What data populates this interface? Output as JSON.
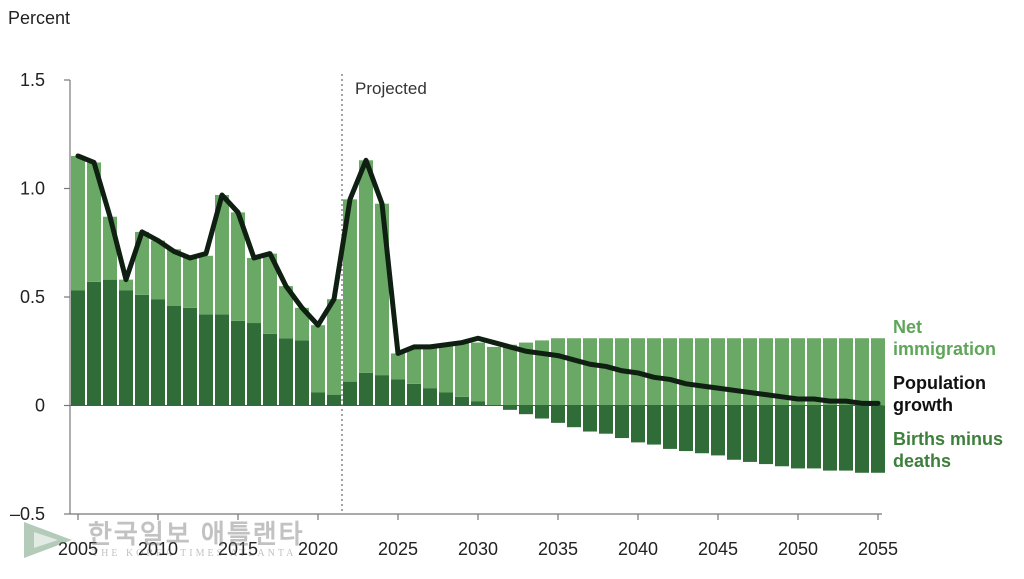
{
  "unit_label": "Percent",
  "colors": {
    "net_immigration": "#6aa865",
    "births_minus_deaths": "#2f6c37",
    "population_growth": "#0f1f12",
    "axis": "#777777",
    "legend_immigration": "#5fa55a",
    "legend_births": "#3e7f3c",
    "legend_growth": "#111111"
  },
  "chart_data": {
    "type": "bar",
    "stacked": true,
    "title": "",
    "xlabel": "",
    "ylabel": "Percent",
    "ylim": [
      -0.5,
      1.5
    ],
    "yticks": [
      {
        "value": 1.5,
        "label": "1.5"
      },
      {
        "value": 1.0,
        "label": "1.0"
      },
      {
        "value": 0.5,
        "label": "0.5"
      },
      {
        "value": 0,
        "label": "0"
      },
      {
        "value": -0.5,
        "label": "–0.5"
      }
    ],
    "xticks": [
      {
        "year": 2005,
        "label": "2005"
      },
      {
        "year": 2010,
        "label": "2010"
      },
      {
        "year": 2015,
        "label": "2015"
      },
      {
        "year": 2020,
        "label": "2020"
      },
      {
        "year": 2025,
        "label": "2025"
      },
      {
        "year": 2030,
        "label": "2030"
      },
      {
        "year": 2035,
        "label": "2035"
      },
      {
        "year": 2040,
        "label": "2040"
      },
      {
        "year": 2045,
        "label": "2045"
      },
      {
        "year": 2050,
        "label": "2050"
      },
      {
        "year": 2055,
        "label": "2055"
      }
    ],
    "projected_start": 2021.5,
    "projected_label": "Projected",
    "years": [
      2005,
      2006,
      2007,
      2008,
      2009,
      2010,
      2011,
      2012,
      2013,
      2014,
      2015,
      2016,
      2017,
      2018,
      2019,
      2020,
      2021,
      2022,
      2023,
      2024,
      2025,
      2026,
      2027,
      2028,
      2029,
      2030,
      2031,
      2032,
      2033,
      2034,
      2035,
      2036,
      2037,
      2038,
      2039,
      2040,
      2041,
      2042,
      2043,
      2044,
      2045,
      2046,
      2047,
      2048,
      2049,
      2050,
      2051,
      2052,
      2053,
      2054,
      2055
    ],
    "series": [
      {
        "name": "Births minus deaths",
        "values": [
          0.53,
          0.57,
          0.58,
          0.53,
          0.51,
          0.49,
          0.46,
          0.45,
          0.42,
          0.42,
          0.39,
          0.38,
          0.33,
          0.31,
          0.3,
          0.06,
          0.05,
          0.11,
          0.15,
          0.14,
          0.12,
          0.1,
          0.08,
          0.06,
          0.04,
          0.02,
          0.0,
          -0.02,
          -0.04,
          -0.06,
          -0.08,
          -0.1,
          -0.12,
          -0.13,
          -0.15,
          -0.17,
          -0.18,
          -0.2,
          -0.21,
          -0.22,
          -0.23,
          -0.25,
          -0.26,
          -0.27,
          -0.28,
          -0.29,
          -0.29,
          -0.3,
          -0.3,
          -0.31,
          -0.31
        ]
      },
      {
        "name": "Net immigration",
        "values": [
          0.62,
          0.55,
          0.29,
          0.05,
          0.29,
          0.27,
          0.26,
          0.23,
          0.27,
          0.55,
          0.5,
          0.3,
          0.37,
          0.24,
          0.15,
          0.31,
          0.44,
          0.84,
          0.98,
          0.79,
          0.12,
          0.17,
          0.19,
          0.22,
          0.25,
          0.27,
          0.27,
          0.28,
          0.29,
          0.3,
          0.31,
          0.31,
          0.31,
          0.31,
          0.31,
          0.31,
          0.31,
          0.31,
          0.31,
          0.31,
          0.31,
          0.31,
          0.31,
          0.31,
          0.31,
          0.31,
          0.31,
          0.31,
          0.31,
          0.31,
          0.31
        ]
      },
      {
        "name": "Population growth",
        "type": "line",
        "values": [
          1.15,
          1.12,
          0.87,
          0.58,
          0.8,
          0.76,
          0.71,
          0.68,
          0.7,
          0.97,
          0.89,
          0.68,
          0.7,
          0.55,
          0.45,
          0.37,
          0.49,
          0.95,
          1.13,
          0.93,
          0.24,
          0.27,
          0.27,
          0.28,
          0.29,
          0.31,
          0.29,
          0.27,
          0.25,
          0.24,
          0.23,
          0.21,
          0.19,
          0.18,
          0.16,
          0.15,
          0.13,
          0.12,
          0.1,
          0.09,
          0.08,
          0.07,
          0.06,
          0.05,
          0.04,
          0.03,
          0.03,
          0.02,
          0.02,
          0.01,
          0.01
        ]
      }
    ]
  },
  "legend": {
    "net_immigration": [
      "Net",
      "immigration"
    ],
    "population_growth": [
      "Population",
      "growth"
    ],
    "births_minus_deaths": [
      "Births minus",
      "deaths"
    ]
  },
  "watermark": {
    "text": "한국일보 애틀랜타",
    "subtext": "THE KOREA TIMES ATLANTA"
  }
}
